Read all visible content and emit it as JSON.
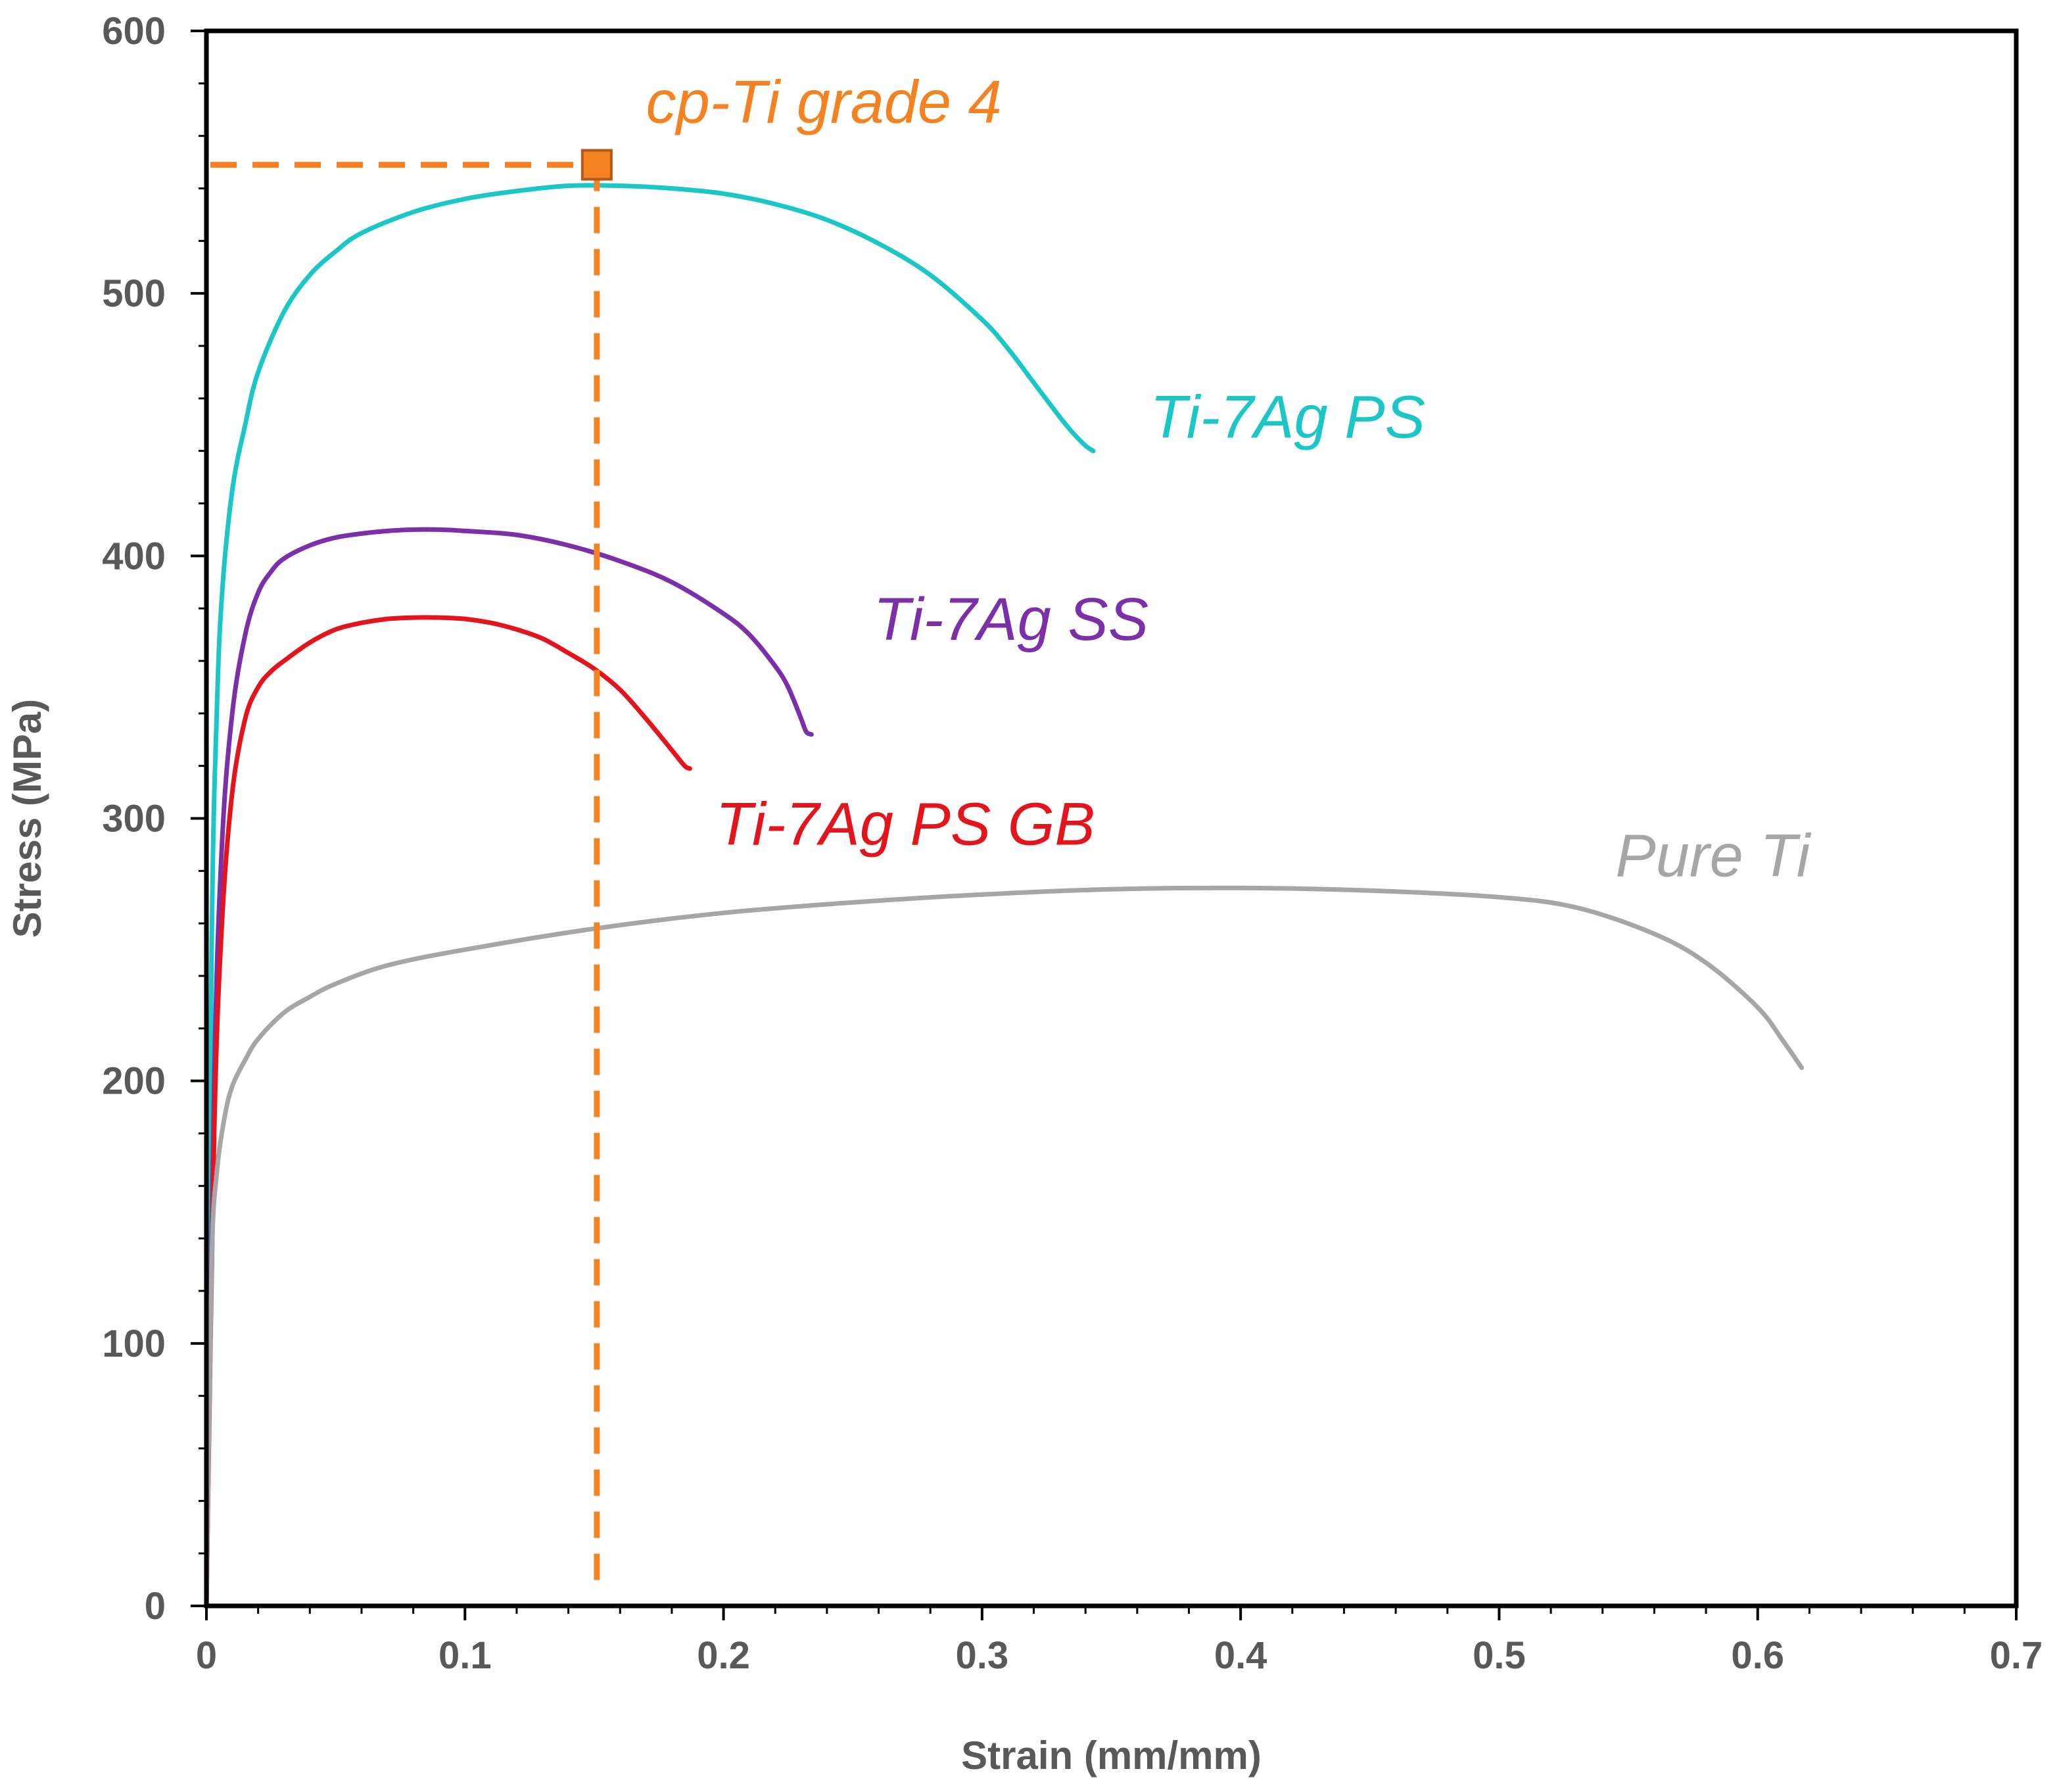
{
  "chart_data": {
    "type": "line",
    "xlabel": "Strain (mm/mm)",
    "ylabel": "Stress (MPa)",
    "xlim": [
      0,
      0.7
    ],
    "ylim": [
      0,
      600
    ],
    "xticks": [
      "0",
      "0.1",
      "0.2",
      "0.3",
      "0.4",
      "0.5",
      "0.6",
      "0.7"
    ],
    "yticks": [
      "0",
      "100",
      "200",
      "300",
      "400",
      "500",
      "600"
    ],
    "xtick_values": [
      0,
      0.1,
      0.2,
      0.3,
      0.4,
      0.5,
      0.6,
      0.7
    ],
    "ytick_values": [
      0,
      100,
      200,
      300,
      400,
      500,
      600
    ],
    "grid": false,
    "series": [
      {
        "name": "Ti-7Ag PS",
        "color": "#1BC6C6",
        "label_text": "Ti-7Ag PS",
        "label_at": [
          0.365,
          445
        ],
        "x": [
          0,
          0.002,
          0.004,
          0.006,
          0.01,
          0.015,
          0.02,
          0.03,
          0.04,
          0.05,
          0.06,
          0.08,
          0.1,
          0.12,
          0.14,
          0.16,
          0.18,
          0.2,
          0.22,
          0.24,
          0.26,
          0.28,
          0.3,
          0.31,
          0.32,
          0.33,
          0.335,
          0.34,
          0.343
        ],
        "y": [
          0,
          250,
          340,
          385,
          425,
          450,
          470,
          493,
          507,
          516,
          523,
          531,
          536,
          539,
          541,
          541,
          540,
          538,
          534,
          528,
          519,
          507,
          490,
          479,
          466,
          453,
          447,
          442,
          440
        ]
      },
      {
        "name": "Ti-7Ag SS",
        "color": "#7B2FA8",
        "label_text": "Ti-7Ag SS",
        "label_at": [
          0.258,
          368
        ],
        "x": [
          0,
          0.003,
          0.006,
          0.01,
          0.015,
          0.02,
          0.025,
          0.03,
          0.04,
          0.05,
          0.06,
          0.07,
          0.08,
          0.09,
          0.1,
          0.12,
          0.14,
          0.16,
          0.18,
          0.2,
          0.21,
          0.22,
          0.225,
          0.23,
          0.232,
          0.234
        ],
        "y": [
          0,
          200,
          290,
          340,
          370,
          386,
          394,
          399,
          404,
          407,
          408.5,
          409.5,
          410,
          410,
          409.5,
          408,
          404,
          398,
          390,
          378,
          370,
          358,
          350,
          338,
          333,
          332
        ]
      },
      {
        "name": "Ti-7Ag PS GB",
        "color": "#E3141C",
        "label_text": "Ti-7Ag PS GB",
        "label_at": [
          0.197,
          290
        ],
        "x": [
          0,
          0.003,
          0.006,
          0.01,
          0.015,
          0.02,
          0.025,
          0.03,
          0.04,
          0.05,
          0.06,
          0.07,
          0.08,
          0.09,
          0.1,
          0.11,
          0.12,
          0.13,
          0.14,
          0.15,
          0.16,
          0.17,
          0.18,
          0.185,
          0.187
        ],
        "y": [
          0,
          180,
          260,
          310,
          338,
          350,
          356,
          360,
          367,
          372,
          374.5,
          376,
          376.5,
          376.5,
          376,
          374.5,
          372,
          368.5,
          363,
          357,
          349,
          338,
          326,
          320,
          319
        ]
      },
      {
        "name": "Pure Ti",
        "color": "#A6A6A6",
        "label_text": "Pure Ti",
        "label_at": [
          0.545,
          278
        ],
        "x": [
          0,
          0.002,
          0.004,
          0.007,
          0.01,
          0.015,
          0.02,
          0.03,
          0.04,
          0.05,
          0.07,
          0.1,
          0.15,
          0.2,
          0.25,
          0.3,
          0.35,
          0.4,
          0.45,
          0.5,
          0.53,
          0.56,
          0.58,
          0.6,
          0.61,
          0.617
        ],
        "y": [
          0,
          130,
          165,
          186,
          198,
          208,
          216,
          226,
          232,
          237,
          244,
          250,
          258,
          264,
          268,
          271,
          273,
          273.5,
          272.5,
          270,
          266,
          256,
          245,
          228,
          215,
          205
        ]
      }
    ],
    "annotations": [
      {
        "text": "cp-Ti grade 4",
        "color": "#F58220",
        "point": [
          0.151,
          549
        ],
        "label_at": [
          0.17,
          565
        ]
      }
    ]
  }
}
